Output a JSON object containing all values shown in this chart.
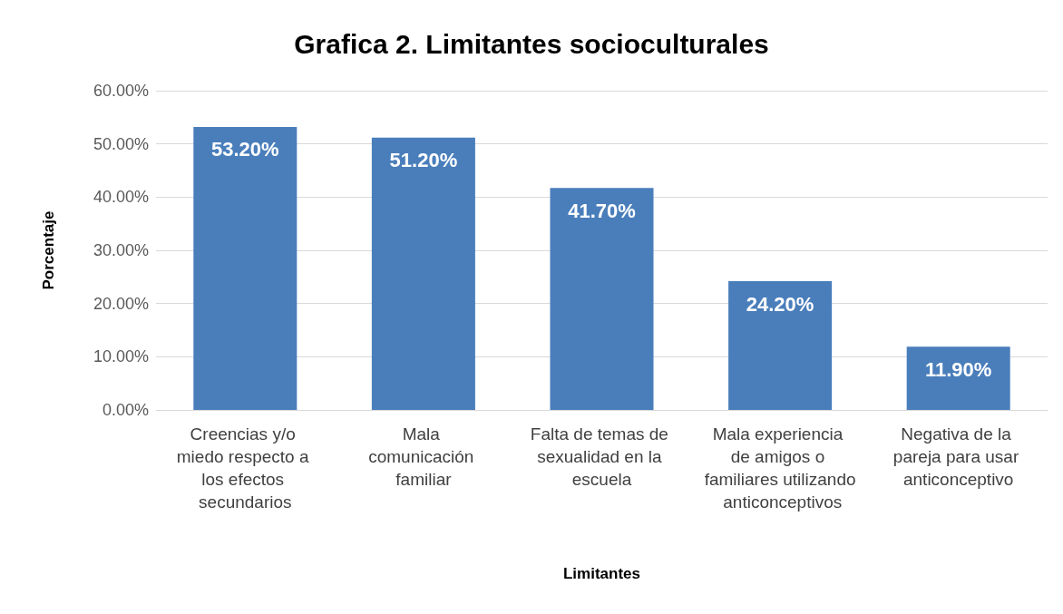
{
  "chart_data": {
    "type": "bar",
    "title": "Grafica 2. Limitantes socioculturales",
    "xlabel": "Limitantes",
    "ylabel": "Porcentaje",
    "categories": [
      "Creencias y/o miedo respecto a los efectos secundarios",
      "Mala comunicación familiar",
      "Falta de temas de sexualidad en la escuela",
      "Mala experiencia de amigos o familiares utilizando anticonceptivos",
      "Negativa de la pareja para usar anticonceptivo"
    ],
    "values": [
      53.2,
      51.2,
      41.7,
      24.2,
      11.9
    ],
    "value_labels": [
      "53.20%",
      "51.20%",
      "41.70%",
      "24.20%",
      "11.90%"
    ],
    "color": "#4a7ebb",
    "ylim": [
      0,
      60
    ],
    "yticks": [
      {
        "value": 0,
        "label": "0.00%"
      },
      {
        "value": 10,
        "label": "10.00%"
      },
      {
        "value": 20,
        "label": "20.00%"
      },
      {
        "value": 30,
        "label": "30.00%"
      },
      {
        "value": 40,
        "label": "40.00%"
      },
      {
        "value": 50,
        "label": "50.00%"
      },
      {
        "value": 60,
        "label": "60.00%"
      }
    ],
    "grid": "y"
  }
}
